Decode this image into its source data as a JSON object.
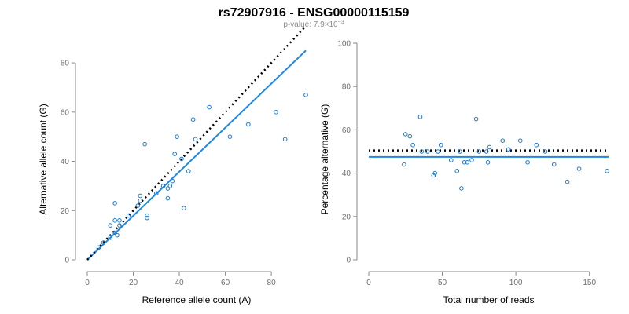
{
  "figure": {
    "title": "rs72907916 - ENSG00000115159",
    "subtitle_prefix": "p-value: 7.9×10",
    "subtitle_exponent": "−3",
    "colors": {
      "points": "#1f78c8",
      "fit_line": "#1e88e5",
      "reference_line": "#000000",
      "axis": "#8a8a8a",
      "subtitle": "#8c8c8c"
    }
  },
  "chart_data": [
    {
      "type": "scatter",
      "xlabel": "Reference allele count (A)",
      "ylabel": "Alternative allele count (G)",
      "xlim": [
        0,
        95
      ],
      "ylim": [
        0,
        88
      ],
      "xticks": [
        0,
        20,
        40,
        60,
        80
      ],
      "yticks": [
        0,
        20,
        40,
        60,
        80
      ],
      "grid": false,
      "points": [
        [
          5,
          5
        ],
        [
          7,
          7
        ],
        [
          10,
          14
        ],
        [
          10,
          9
        ],
        [
          12,
          11
        ],
        [
          12,
          23
        ],
        [
          12,
          16
        ],
        [
          13,
          10
        ],
        [
          14,
          16
        ],
        [
          14,
          14
        ],
        [
          18,
          18
        ],
        [
          22,
          22
        ],
        [
          23,
          26
        ],
        [
          23,
          24
        ],
        [
          25,
          47
        ],
        [
          26,
          18
        ],
        [
          26,
          17
        ],
        [
          30,
          27
        ],
        [
          33,
          30
        ],
        [
          35,
          29
        ],
        [
          35,
          25
        ],
        [
          36,
          30
        ],
        [
          37,
          32
        ],
        [
          38,
          43
        ],
        [
          39,
          50
        ],
        [
          41,
          41
        ],
        [
          42,
          21
        ],
        [
          44,
          36
        ],
        [
          46,
          57
        ],
        [
          47,
          49
        ],
        [
          53,
          62
        ],
        [
          62,
          50
        ],
        [
          70,
          55
        ],
        [
          82,
          60
        ],
        [
          86,
          49
        ],
        [
          95,
          67
        ]
      ],
      "lines": [
        {
          "kind": "fit",
          "from": [
            0,
            0
          ],
          "to": [
            95,
            85
          ]
        },
        {
          "kind": "reference",
          "from": [
            0,
            0
          ],
          "to": [
            95,
            95
          ]
        }
      ]
    },
    {
      "type": "scatter",
      "xlabel": "Total number of reads",
      "ylabel": "Percentage alternative (G)",
      "xlim": [
        0,
        163
      ],
      "ylim": [
        0,
        100
      ],
      "xticks": [
        0,
        50,
        100,
        150
      ],
      "yticks": [
        0,
        20,
        40,
        60,
        80,
        100
      ],
      "grid": false,
      "points": [
        [
          24,
          44
        ],
        [
          25,
          58
        ],
        [
          28,
          57
        ],
        [
          30,
          53
        ],
        [
          35,
          66
        ],
        [
          36,
          50
        ],
        [
          40,
          50
        ],
        [
          44,
          39
        ],
        [
          45,
          40
        ],
        [
          47,
          50
        ],
        [
          49,
          53
        ],
        [
          56,
          46
        ],
        [
          60,
          41
        ],
        [
          62,
          50
        ],
        [
          63,
          33
        ],
        [
          65,
          45
        ],
        [
          67,
          45
        ],
        [
          70,
          46
        ],
        [
          73,
          65
        ],
        [
          75,
          50
        ],
        [
          80,
          50
        ],
        [
          81,
          45
        ],
        [
          82,
          52
        ],
        [
          91,
          55
        ],
        [
          95,
          51
        ],
        [
          103,
          55
        ],
        [
          108,
          45
        ],
        [
          114,
          53
        ],
        [
          120,
          50
        ],
        [
          126,
          44
        ],
        [
          135,
          36
        ],
        [
          143,
          42
        ],
        [
          162,
          41
        ]
      ],
      "lines": [
        {
          "kind": "fit",
          "from": [
            0,
            47.5
          ],
          "to": [
            163,
            47.5
          ]
        },
        {
          "kind": "reference",
          "from": [
            0,
            50.5
          ],
          "to": [
            163,
            50.5
          ]
        }
      ]
    }
  ]
}
